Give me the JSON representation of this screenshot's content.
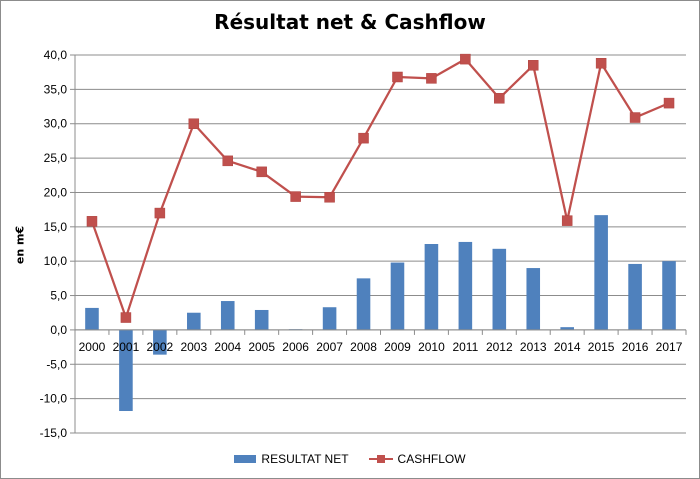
{
  "chart_data": {
    "type": "bar+line",
    "title": "Résultat net & Cashflow",
    "xlabel": "",
    "ylabel": "en m€",
    "ylim": [
      -15,
      40
    ],
    "ytick_step": 5,
    "ytick_labels": [
      "-15,0",
      "-10,0",
      "-5,0",
      "0,0",
      "5,0",
      "10,0",
      "15,0",
      "20,0",
      "25,0",
      "30,0",
      "35,0",
      "40,0"
    ],
    "grid": "horizontal",
    "legend_position": "bottom",
    "categories": [
      "2000",
      "2001",
      "2002",
      "2003",
      "2004",
      "2005",
      "2006",
      "2007",
      "2008",
      "2009",
      "2010",
      "2011",
      "2012",
      "2013",
      "2014",
      "2015",
      "2016",
      "2017"
    ],
    "series": [
      {
        "name": "RESULTAT NET",
        "type": "bar",
        "color": "#4f81bd",
        "values": [
          3.2,
          -11.8,
          -3.6,
          2.5,
          4.2,
          2.9,
          0.1,
          3.3,
          7.5,
          9.8,
          12.5,
          12.8,
          11.8,
          9.0,
          0.4,
          16.7,
          9.6,
          10.0
        ]
      },
      {
        "name": "CASHFLOW",
        "type": "line",
        "color": "#c0504d",
        "marker": "square",
        "values": [
          15.8,
          1.8,
          17.0,
          30.0,
          24.6,
          23.0,
          19.4,
          19.3,
          27.9,
          36.8,
          36.6,
          39.4,
          33.7,
          38.5,
          15.9,
          38.8,
          30.9,
          33.0
        ]
      }
    ]
  }
}
